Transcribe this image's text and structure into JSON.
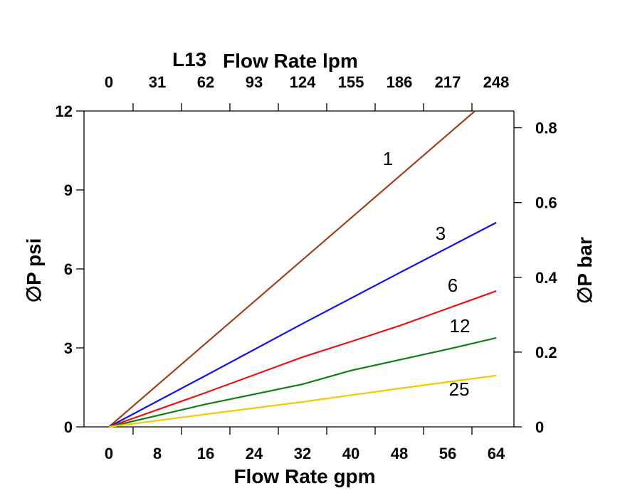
{
  "chart_data": {
    "type": "line",
    "title": "L13",
    "xlabel": "Flow Rate gpm",
    "x2label": "Flow Rate lpm",
    "ylabel": "∅P psi",
    "y2label": "∅P bar",
    "xlim": [
      -4,
      67
    ],
    "ylim": [
      0,
      12
    ],
    "x_ticks": [
      "0",
      "8",
      "16",
      "24",
      "32",
      "40",
      "48",
      "56",
      "64"
    ],
    "x2_ticks": [
      "0",
      "31",
      "62",
      "93",
      "124",
      "155",
      "186",
      "217",
      "248"
    ],
    "y_ticks": [
      "0",
      "3",
      "6",
      "9",
      "12"
    ],
    "y2_ticks": [
      "0",
      "0.2",
      "0.4",
      "0.6",
      "0.8"
    ],
    "grid": false,
    "series": [
      {
        "name": "1",
        "color": "#a0401a",
        "points": [
          [
            0,
            0
          ],
          [
            30,
            5.95
          ],
          [
            60.5,
            12
          ]
        ]
      },
      {
        "name": "3",
        "color": "#1010f0",
        "points": [
          [
            0,
            0
          ],
          [
            16,
            1.95
          ],
          [
            32,
            3.92
          ],
          [
            48,
            5.85
          ],
          [
            64,
            7.76
          ]
        ]
      },
      {
        "name": "6",
        "color": "#f01010",
        "points": [
          [
            0,
            0
          ],
          [
            16,
            1.3
          ],
          [
            32,
            2.65
          ],
          [
            40,
            3.24
          ],
          [
            48,
            3.84
          ],
          [
            64,
            5.16
          ]
        ]
      },
      {
        "name": "12",
        "color": "#108010",
        "points": [
          [
            0,
            0
          ],
          [
            16,
            0.86
          ],
          [
            32,
            1.62
          ],
          [
            40,
            2.14
          ],
          [
            56,
            2.95
          ],
          [
            64,
            3.38
          ]
        ]
      },
      {
        "name": "25",
        "color": "#f5c800",
        "points": [
          [
            0,
            0
          ],
          [
            16,
            0.48
          ],
          [
            32,
            0.95
          ],
          [
            48,
            1.46
          ],
          [
            64,
            1.95
          ]
        ]
      }
    ]
  }
}
